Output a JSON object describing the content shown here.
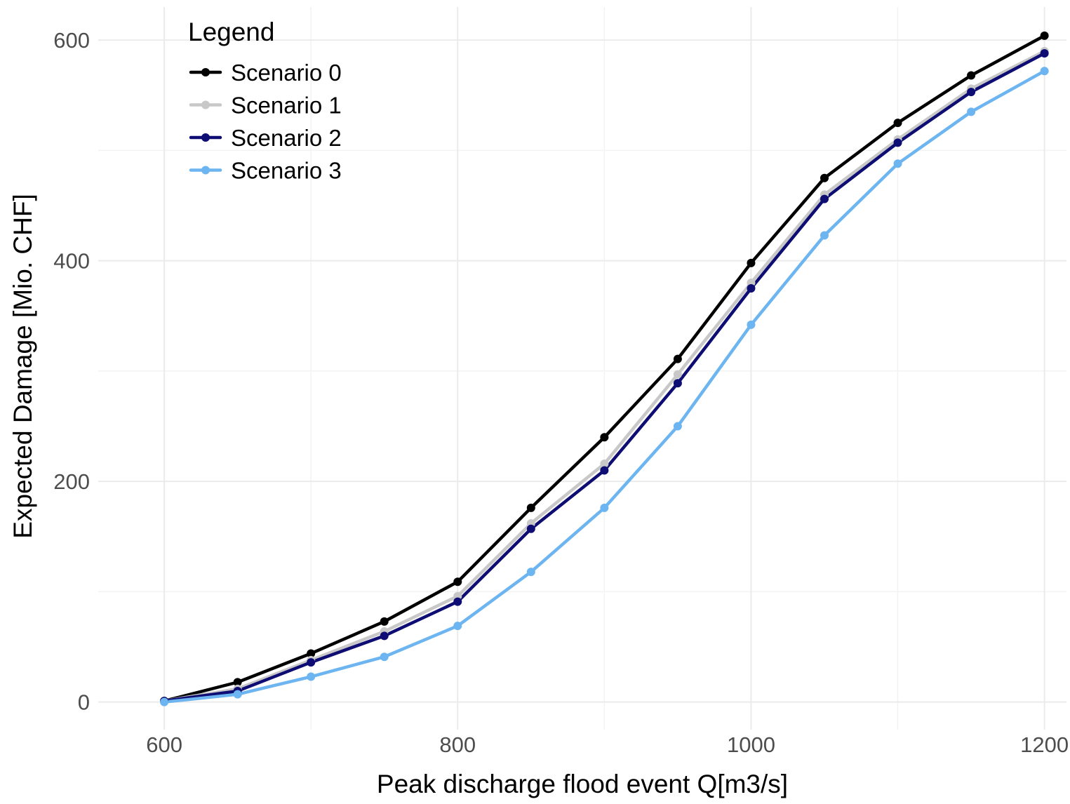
{
  "chart_data": {
    "type": "line",
    "title": "",
    "xlabel": "Peak discharge flood event Q[m3/s]",
    "ylabel": "Expected Damage [Mio. CHF]",
    "xlim": [
      555,
      1215
    ],
    "ylim": [
      -25,
      630
    ],
    "x_ticks": [
      600,
      800,
      1000,
      1200
    ],
    "y_ticks": [
      0,
      200,
      400,
      600
    ],
    "x_minor": [
      700,
      900,
      1100
    ],
    "y_minor": [
      100,
      300,
      500
    ],
    "grid": true,
    "legend": {
      "title": "Legend",
      "position": "top-left"
    },
    "x": [
      600,
      650,
      700,
      750,
      800,
      850,
      900,
      950,
      1000,
      1050,
      1100,
      1150,
      1200
    ],
    "series": [
      {
        "name": "Scenario 0",
        "color": "#000000",
        "values": [
          1,
          18,
          44,
          73,
          109,
          176,
          240,
          311,
          398,
          475,
          525,
          568,
          604
        ]
      },
      {
        "name": "Scenario 1",
        "color": "#c8c8c8",
        "values": [
          1,
          12,
          38,
          64,
          96,
          162,
          216,
          297,
          380,
          460,
          510,
          556,
          590
        ]
      },
      {
        "name": "Scenario 2",
        "color": "#0d0d73",
        "values": [
          1,
          10,
          36,
          60,
          91,
          157,
          210,
          289,
          375,
          456,
          507,
          553,
          588
        ]
      },
      {
        "name": "Scenario 3",
        "color": "#6cb5f0",
        "values": [
          0,
          7,
          23,
          41,
          69,
          118,
          176,
          250,
          342,
          423,
          488,
          535,
          572
        ]
      }
    ]
  }
}
